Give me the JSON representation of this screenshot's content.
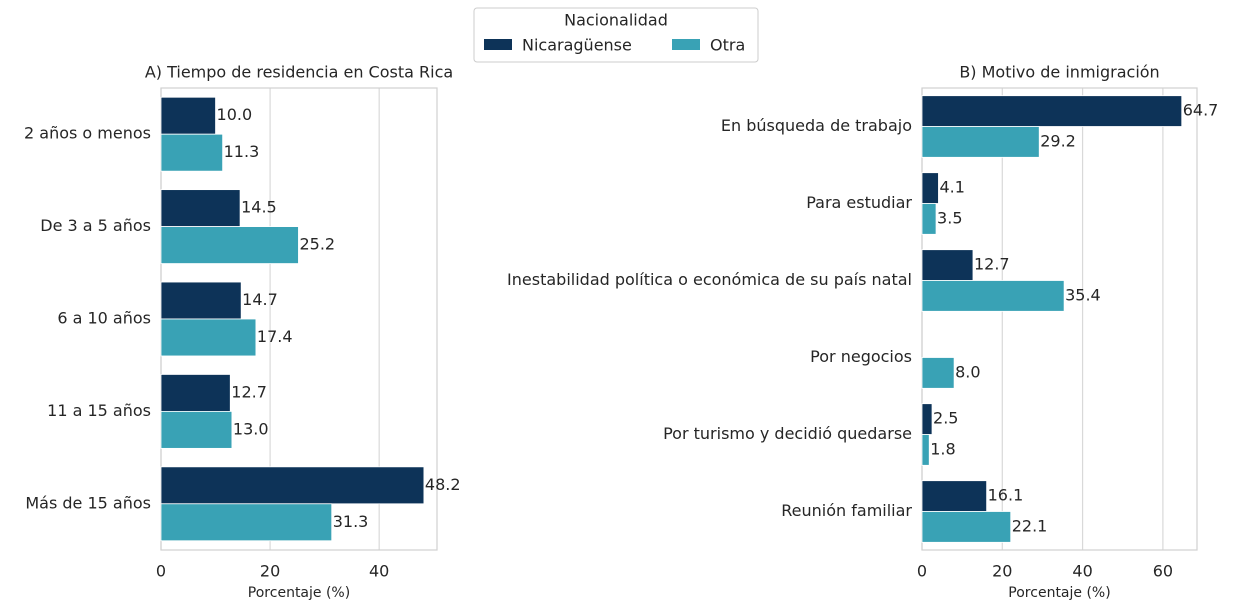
{
  "legend": {
    "title": "Nacionalidad"
  },
  "chart_data": [
    {
      "type": "barh",
      "title": "A) Tiempo de residencia en Costa Rica",
      "xlabel": "Porcentaje (%)",
      "categories": [
        "2 años o menos",
        "De 3 a 5 años",
        "6 a 10 años",
        "11 a 15 años",
        "Más de 15 años"
      ],
      "series": [
        {
          "name": "Nicaragüense",
          "color": "#0d3358",
          "values": [
            10.0,
            14.5,
            14.7,
            12.7,
            48.2
          ],
          "value_labels": [
            "10.0",
            "14.5",
            "14.7",
            "12.7",
            "48.2"
          ]
        },
        {
          "name": "Otra",
          "color": "#39a2b5",
          "values": [
            11.3,
            25.2,
            17.4,
            13.0,
            31.3
          ],
          "value_labels": [
            "11.3",
            "25.2",
            "17.4",
            "13.0",
            "31.3"
          ]
        }
      ],
      "xlim": [
        0,
        50.6
      ],
      "xticks": [
        0,
        20,
        40
      ],
      "grid": true
    },
    {
      "type": "barh",
      "title": "B) Motivo de inmigración",
      "xlabel": "Porcentaje (%)",
      "categories": [
        "En búsqueda de trabajo",
        "Para estudiar",
        "Inestabilidad política o económica de su país natal",
        "Por negocios",
        "Por turismo y decidió quedarse",
        "Reunión familiar"
      ],
      "series": [
        {
          "name": "Nicaragüense",
          "color": "#0d3358",
          "values": [
            64.7,
            4.1,
            12.7,
            null,
            2.5,
            16.1
          ],
          "value_labels": [
            "64.7",
            "4.1",
            "12.7",
            null,
            "2.5",
            "16.1"
          ]
        },
        {
          "name": "Otra",
          "color": "#39a2b5",
          "values": [
            29.2,
            3.5,
            35.4,
            8.0,
            1.8,
            22.1
          ],
          "value_labels": [
            "29.2",
            "3.5",
            "35.4",
            "8.0",
            "1.8",
            "22.1"
          ]
        }
      ],
      "xlim": [
        0,
        68.5
      ],
      "xticks": [
        0,
        20,
        40,
        60
      ],
      "grid": true
    }
  ]
}
